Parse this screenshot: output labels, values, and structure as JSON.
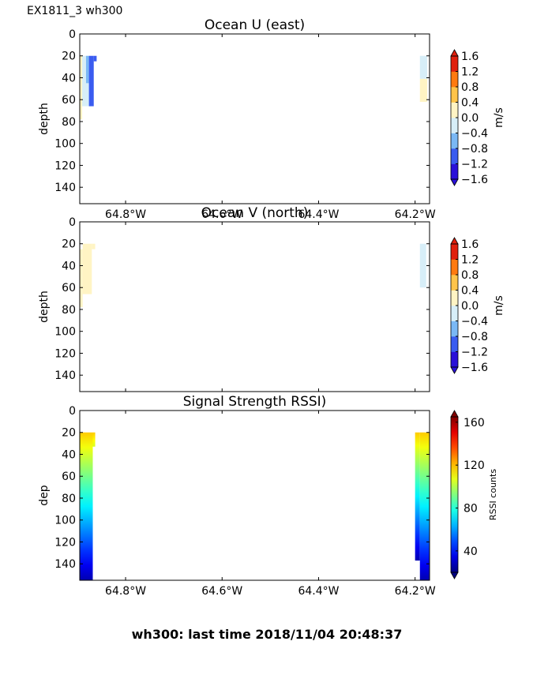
{
  "figure": {
    "corner_label": "EX1811_3 wh300",
    "footer": "wh300: last time 2018/11/04 20:48:37"
  },
  "chart_data": [
    {
      "type": "heatmap",
      "title": "Ocean U (east)",
      "ylabel": "depth",
      "ylim": [
        155,
        0
      ],
      "yticks": [
        0,
        20,
        40,
        60,
        80,
        100,
        120,
        140
      ],
      "xlim": [
        -64.895,
        -64.17
      ],
      "xticks": [
        -64.8,
        -64.6,
        -64.4,
        -64.2
      ],
      "xtick_labels": [
        "64.8°W",
        "64.6°W",
        "64.4°W",
        "64.2°W"
      ],
      "colorbar": {
        "label": "m/s",
        "ticks": [
          1.6,
          1.2,
          0.8,
          0.4,
          0.0,
          -0.4,
          -0.8,
          -1.2,
          -1.6
        ],
        "tick_labels": [
          "1.6",
          "1.2",
          "0.8",
          "0.4",
          "0.0",
          "−0.4",
          "−0.8",
          "−1.2",
          "−1.6"
        ],
        "range": [
          -1.6,
          1.6
        ]
      },
      "cells": [
        {
          "x0": -64.895,
          "x1": -64.89,
          "y0": 20,
          "y1": 78,
          "v": 0.1
        },
        {
          "x0": -64.89,
          "x1": -64.882,
          "y0": 20,
          "y1": 66,
          "v": -0.1
        },
        {
          "x0": -64.882,
          "x1": -64.876,
          "y0": 20,
          "y1": 45,
          "v": -0.5
        },
        {
          "x0": -64.882,
          "x1": -64.876,
          "y0": 45,
          "y1": 66,
          "v": -0.1
        },
        {
          "x0": -64.876,
          "x1": -64.866,
          "y0": 20,
          "y1": 66,
          "v": -1.0
        },
        {
          "x0": -64.866,
          "x1": -64.86,
          "y0": 20,
          "y1": 25,
          "v": -1.0
        },
        {
          "x0": -64.19,
          "x1": -64.175,
          "y0": 20,
          "y1": 41,
          "v": -0.1
        },
        {
          "x0": -64.19,
          "x1": -64.175,
          "y0": 41,
          "y1": 62,
          "v": 0.2
        }
      ]
    },
    {
      "type": "heatmap",
      "title": "Ocean V (north)",
      "ylabel": "depth",
      "ylim": [
        155,
        0
      ],
      "yticks": [
        0,
        20,
        40,
        60,
        80,
        100,
        120,
        140
      ],
      "xlim": [
        -64.895,
        -64.17
      ],
      "xticks": [
        -64.8,
        -64.6,
        -64.4,
        -64.2
      ],
      "xtick_labels": [
        "",
        "",
        "",
        ""
      ],
      "colorbar": {
        "label": "m/s",
        "ticks": [
          1.6,
          1.2,
          0.8,
          0.4,
          0.0,
          -0.4,
          -0.8,
          -1.2,
          -1.6
        ],
        "tick_labels": [
          "1.6",
          "1.2",
          "0.8",
          "0.4",
          "0.0",
          "−0.4",
          "−0.8",
          "−1.2",
          "−1.6"
        ],
        "range": [
          -1.6,
          1.6
        ]
      },
      "cells": [
        {
          "x0": -64.895,
          "x1": -64.889,
          "y0": 25,
          "y1": 78,
          "v": 0.1
        },
        {
          "x0": -64.889,
          "x1": -64.87,
          "y0": 20,
          "y1": 66,
          "v": 0.1
        },
        {
          "x0": -64.87,
          "x1": -64.863,
          "y0": 20,
          "y1": 25,
          "v": 0.1
        },
        {
          "x0": -64.19,
          "x1": -64.177,
          "y0": 20,
          "y1": 60,
          "v": -0.1
        }
      ]
    },
    {
      "type": "heatmap",
      "title": "Signal Strength RSSI)",
      "ylabel": "dep",
      "ylim": [
        155,
        0
      ],
      "yticks": [
        0,
        20,
        40,
        60,
        80,
        100,
        120,
        140
      ],
      "xlim": [
        -64.895,
        -64.17
      ],
      "xticks": [
        -64.8,
        -64.6,
        -64.4,
        -64.2
      ],
      "xtick_labels": [
        "64.8°W",
        "64.6°W",
        "64.4°W",
        "64.2°W"
      ],
      "colorbar": {
        "label": "RSSI counts",
        "ticks": [
          160,
          120,
          80,
          40
        ],
        "tick_labels": [
          "160",
          "120",
          "80",
          "40"
        ],
        "range": [
          20,
          165
        ]
      },
      "columns": [
        {
          "x0": -64.895,
          "x1": -64.868,
          "y0": 20,
          "y1": 155,
          "v_top": 118,
          "v_bottom": 27
        },
        {
          "x0": -64.868,
          "x1": -64.863,
          "y0": 20,
          "y1": 33,
          "v_top": 118,
          "v_bottom": 105
        },
        {
          "x0": -64.2,
          "x1": -64.19,
          "y0": 20,
          "y1": 137,
          "v_top": 118,
          "v_bottom": 27
        },
        {
          "x0": -64.19,
          "x1": -64.17,
          "y0": 20,
          "y1": 155,
          "v_top": 118,
          "v_bottom": 27
        }
      ]
    }
  ]
}
